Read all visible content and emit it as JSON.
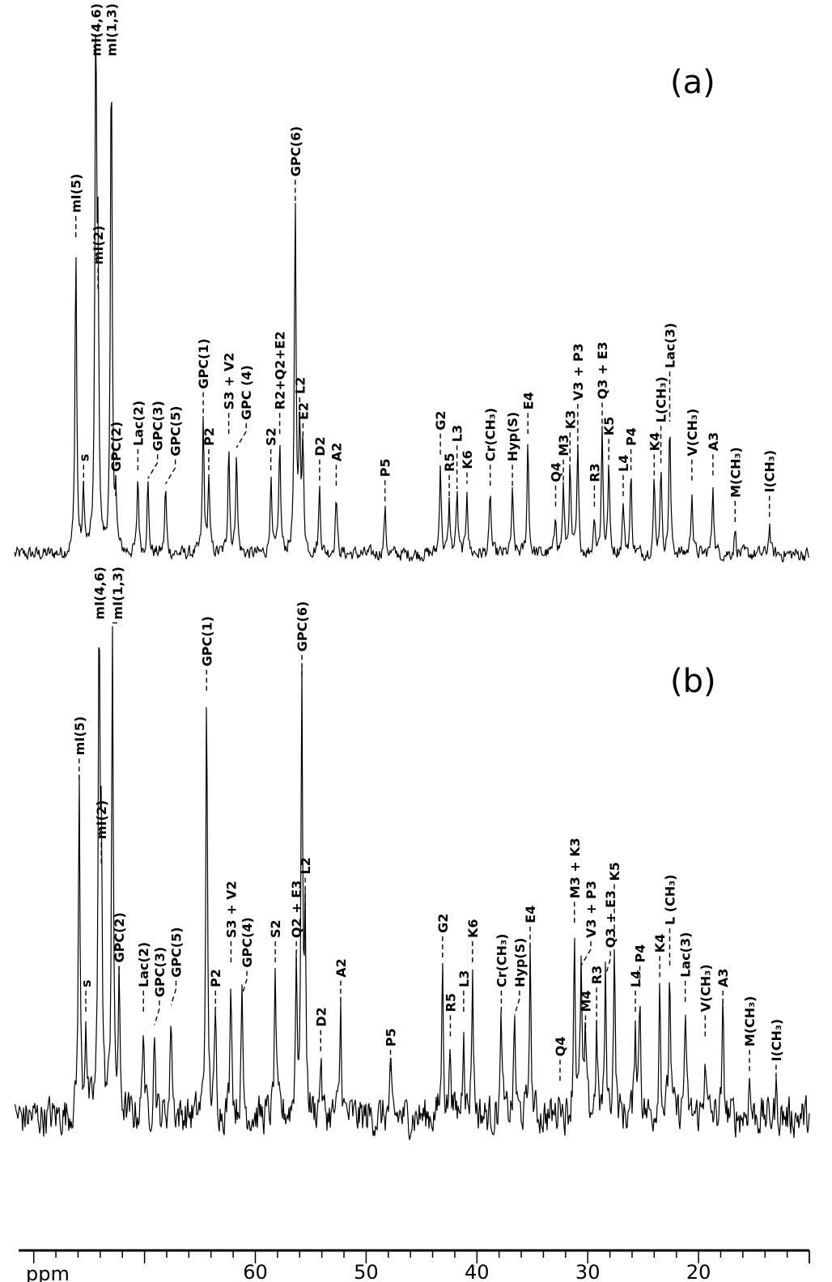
{
  "chart_data": {
    "type": "line",
    "xlabel": "ppm",
    "xlim": [
      81,
      10
    ],
    "x_reversed": true,
    "x_ticks": [
      60,
      50,
      40,
      30,
      20
    ],
    "x_minor_tick_step": 2,
    "grid": false,
    "line_color": "#000000",
    "panels": [
      {
        "tag": "(a)",
        "noise_level": 0.012,
        "peaks": [
          {
            "label": "mI(5)",
            "ppm": 76.2,
            "intensity": 0.6
          },
          {
            "label": "s",
            "ppm": 75.5,
            "intensity": 0.12
          },
          {
            "label": "mI(4,6)",
            "ppm": 74.4,
            "intensity": 1.0
          },
          {
            "label": "mI(2)",
            "ppm": 74.2,
            "intensity": 0.5
          },
          {
            "label": "mI(1,3)",
            "ppm": 73.0,
            "intensity": 0.98
          },
          {
            "label": "GPC(2)",
            "ppm": 72.6,
            "intensity": 0.1
          },
          {
            "label": "Lac(2)",
            "ppm": 70.6,
            "intensity": 0.15
          },
          {
            "label": "GPC(3)",
            "ppm": 69.7,
            "intensity": 0.14
          },
          {
            "label": "GPC(5)",
            "ppm": 68.1,
            "intensity": 0.13
          },
          {
            "label": "GPC(1)",
            "ppm": 64.7,
            "intensity": 0.26
          },
          {
            "label": "P2",
            "ppm": 64.2,
            "intensity": 0.15
          },
          {
            "label": "S3 + V2",
            "ppm": 62.4,
            "intensity": 0.22
          },
          {
            "label": "GPC (4)",
            "ppm": 61.7,
            "intensity": 0.2
          },
          {
            "label": "S2",
            "ppm": 58.6,
            "intensity": 0.15
          },
          {
            "label": "R2+Q2+E2",
            "ppm": 57.8,
            "intensity": 0.22
          },
          {
            "label": "GPC(6)",
            "ppm": 56.4,
            "intensity": 0.67
          },
          {
            "label": "L2",
            "ppm": 56.0,
            "intensity": 0.25
          },
          {
            "label": "E2",
            "ppm": 55.7,
            "intensity": 0.2
          },
          {
            "label": "D2",
            "ppm": 54.2,
            "intensity": 0.13
          },
          {
            "label": "A2",
            "ppm": 52.7,
            "intensity": 0.12
          },
          {
            "label": "P5",
            "ppm": 48.3,
            "intensity": 0.09
          },
          {
            "label": "G2",
            "ppm": 43.3,
            "intensity": 0.18
          },
          {
            "label": "R5",
            "ppm": 42.5,
            "intensity": 0.1
          },
          {
            "label": "L3",
            "ppm": 41.8,
            "intensity": 0.12
          },
          {
            "label": "K6",
            "ppm": 40.9,
            "intensity": 0.13
          },
          {
            "label": "Cr(CH₃)",
            "ppm": 38.8,
            "intensity": 0.12
          },
          {
            "label": "Hyp(S)",
            "ppm": 36.8,
            "intensity": 0.12
          },
          {
            "label": "E4",
            "ppm": 35.4,
            "intensity": 0.22
          },
          {
            "label": "Q4",
            "ppm": 32.9,
            "intensity": 0.08
          },
          {
            "label": "M3",
            "ppm": 32.2,
            "intensity": 0.13
          },
          {
            "label": "K3",
            "ppm": 31.6,
            "intensity": 0.17
          },
          {
            "label": "V3 + P3",
            "ppm": 30.9,
            "intensity": 0.2
          },
          {
            "label": "R3",
            "ppm": 29.4,
            "intensity": 0.08
          },
          {
            "label": "Q3 + E3",
            "ppm": 28.7,
            "intensity": 0.24
          },
          {
            "label": "K5",
            "ppm": 28.1,
            "intensity": 0.17
          },
          {
            "label": "L4",
            "ppm": 26.8,
            "intensity": 0.1
          },
          {
            "label": "P4",
            "ppm": 26.1,
            "intensity": 0.15
          },
          {
            "label": "K4",
            "ppm": 24.0,
            "intensity": 0.14
          },
          {
            "label": "L(CH₃)",
            "ppm": 23.4,
            "intensity": 0.17
          },
          {
            "label": "Lac(3)",
            "ppm": 22.6,
            "intensity": 0.25
          },
          {
            "label": "V(CH₃)",
            "ppm": 20.6,
            "intensity": 0.13
          },
          {
            "label": "A3",
            "ppm": 18.7,
            "intensity": 0.14
          },
          {
            "label": "M(CH₃)",
            "ppm": 16.7,
            "intensity": 0.05
          },
          {
            "label": "I(CH₃)",
            "ppm": 13.6,
            "intensity": 0.06
          }
        ]
      },
      {
        "tag": "(b)",
        "noise_level": 0.035,
        "peaks": [
          {
            "label": "mI(5)",
            "ppm": 75.9,
            "intensity": 0.67
          },
          {
            "label": "s",
            "ppm": 75.3,
            "intensity": 0.2
          },
          {
            "label": "mI(4,6)",
            "ppm": 74.1,
            "intensity": 1.0
          },
          {
            "label": "mI(2)",
            "ppm": 73.9,
            "intensity": 0.5
          },
          {
            "label": "mI(1,3)",
            "ppm": 72.9,
            "intensity": 1.0
          },
          {
            "label": "GPC(2)",
            "ppm": 72.3,
            "intensity": 0.25
          },
          {
            "label": "Lac(2)",
            "ppm": 70.1,
            "intensity": 0.2
          },
          {
            "label": "GPC(3)",
            "ppm": 69.1,
            "intensity": 0.18
          },
          {
            "label": "GPC(5)",
            "ppm": 67.6,
            "intensity": 0.22
          },
          {
            "label": "GPC(1)",
            "ppm": 64.4,
            "intensity": 0.85
          },
          {
            "label": "P2",
            "ppm": 63.6,
            "intensity": 0.2
          },
          {
            "label": "S3 + V2",
            "ppm": 62.2,
            "intensity": 0.3
          },
          {
            "label": "GPC(4)",
            "ppm": 61.2,
            "intensity": 0.24
          },
          {
            "label": "S2",
            "ppm": 58.2,
            "intensity": 0.3
          },
          {
            "label": "Q2 + E3",
            "ppm": 56.3,
            "intensity": 0.3
          },
          {
            "label": "GPC(6)",
            "ppm": 55.8,
            "intensity": 0.88
          },
          {
            "label": "L2",
            "ppm": 55.5,
            "intensity": 0.35
          },
          {
            "label": "D2",
            "ppm": 54.1,
            "intensity": 0.12
          },
          {
            "label": "A2",
            "ppm": 52.3,
            "intensity": 0.22
          },
          {
            "label": "P5",
            "ppm": 47.8,
            "intensity": 0.08
          },
          {
            "label": "G2",
            "ppm": 43.1,
            "intensity": 0.31
          },
          {
            "label": "R5",
            "ppm": 42.4,
            "intensity": 0.15
          },
          {
            "label": "L3",
            "ppm": 41.2,
            "intensity": 0.2
          },
          {
            "label": "K6",
            "ppm": 40.4,
            "intensity": 0.3
          },
          {
            "label": "Cr(CH₃)",
            "ppm": 37.8,
            "intensity": 0.2
          },
          {
            "label": "Hyp(S)",
            "ppm": 36.6,
            "intensity": 0.2
          },
          {
            "label": "E4",
            "ppm": 35.2,
            "intensity": 0.33
          },
          {
            "label": "Q4",
            "ppm": 32.5,
            "intensity": 0.06
          },
          {
            "label": "M3 + K3",
            "ppm": 31.2,
            "intensity": 0.38
          },
          {
            "label": "V3 + P3",
            "ppm": 30.6,
            "intensity": 0.3
          },
          {
            "label": "M4",
            "ppm": 30.2,
            "intensity": 0.15
          },
          {
            "label": "R3",
            "ppm": 29.2,
            "intensity": 0.18
          },
          {
            "label": "Q3 + E3",
            "ppm": 28.4,
            "intensity": 0.28
          },
          {
            "label": "K5",
            "ppm": 27.6,
            "intensity": 0.35
          },
          {
            "label": "L4",
            "ppm": 25.7,
            "intensity": 0.2
          },
          {
            "label": "P4",
            "ppm": 25.3,
            "intensity": 0.25
          },
          {
            "label": "K4",
            "ppm": 23.5,
            "intensity": 0.27
          },
          {
            "label": "L (CH₃)",
            "ppm": 22.6,
            "intensity": 0.3
          },
          {
            "label": "Lac(3)",
            "ppm": 21.2,
            "intensity": 0.22
          },
          {
            "label": "V(CH₃)",
            "ppm": 19.4,
            "intensity": 0.15
          },
          {
            "label": "A3",
            "ppm": 17.8,
            "intensity": 0.2
          },
          {
            "label": "M(CH₃)",
            "ppm": 15.4,
            "intensity": 0.08
          },
          {
            "label": "I(CH₃)",
            "ppm": 13.0,
            "intensity": 0.05
          }
        ]
      }
    ]
  }
}
